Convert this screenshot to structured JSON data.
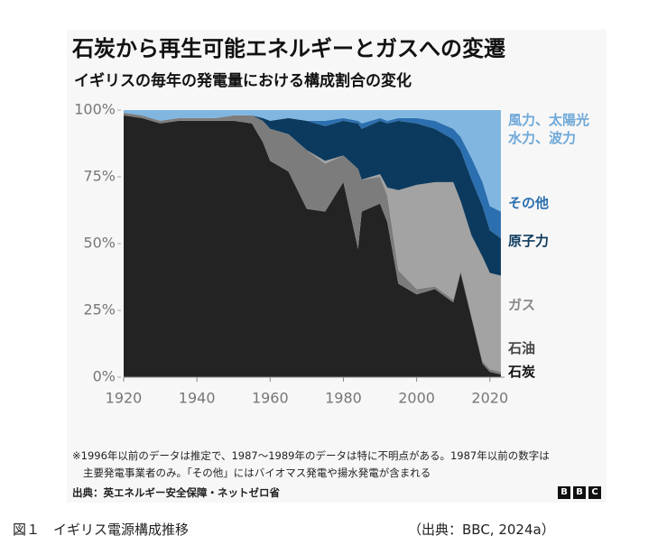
{
  "chart_data": {
    "type": "stacked-area",
    "title": "石炭から再生可能エネルギーとガスへの変遷",
    "subtitle": "イギリスの毎年の発電量における構成割合の変化",
    "x": [
      1920,
      1925,
      1930,
      1935,
      1940,
      1945,
      1950,
      1955,
      1958,
      1960,
      1965,
      1970,
      1975,
      1980,
      1984,
      1985,
      1990,
      1992,
      1995,
      2000,
      2005,
      2010,
      2012,
      2015,
      2018,
      2020,
      2023
    ],
    "series": [
      {
        "name": "石炭",
        "color": "#232323",
        "values": [
          98,
          97,
          95,
          96,
          96,
          96,
          96,
          95,
          88,
          81,
          77,
          63,
          62,
          73,
          48,
          62,
          65,
          58,
          35,
          31,
          33,
          28,
          39,
          22,
          5,
          2,
          1
        ]
      },
      {
        "name": "石油",
        "color": "#7c7c7c",
        "values": [
          1,
          1,
          1,
          1,
          1,
          1,
          2,
          3,
          8,
          12,
          14,
          22,
          18,
          10,
          30,
          12,
          10,
          10,
          5,
          2,
          1,
          1,
          1,
          1,
          1,
          1,
          1
        ]
      },
      {
        "name": "ガス",
        "color": "#a3a3a3",
        "values": [
          0,
          0,
          0,
          0,
          0,
          0,
          0,
          0,
          0,
          0,
          0,
          0,
          1,
          0,
          0,
          0,
          1,
          3,
          30,
          39,
          39,
          44,
          26,
          30,
          39,
          36,
          36
        ]
      },
      {
        "name": "原子力",
        "color": "#0c3a5e",
        "values": [
          0,
          0,
          0,
          0,
          0,
          0,
          0,
          0,
          1,
          3,
          6,
          11,
          13,
          13,
          17,
          19,
          20,
          24,
          26,
          23,
          20,
          16,
          19,
          21,
          19,
          16,
          14
        ]
      },
      {
        "name": "その他",
        "color": "#2c6fb0",
        "values": [
          0,
          0,
          0,
          0,
          0,
          0,
          0,
          0,
          0,
          0,
          0,
          0,
          2,
          1,
          1,
          2,
          1,
          1,
          1,
          2,
          3,
          4,
          5,
          8,
          9,
          9,
          10
        ]
      },
      {
        "name": "風力、太陽光\n水力、波力",
        "color": "#80b6e0",
        "values": [
          1,
          2,
          4,
          3,
          3,
          3,
          2,
          2,
          3,
          4,
          3,
          4,
          4,
          3,
          4,
          5,
          3,
          4,
          3,
          3,
          4,
          7,
          10,
          18,
          27,
          36,
          38
        ]
      }
    ],
    "xlim": [
      1920,
      2024
    ],
    "xticks": [
      1920,
      1940,
      1960,
      1980,
      2000,
      2020
    ],
    "ylim": [
      0,
      100
    ],
    "yticks": [
      {
        "value": 0,
        "label": "0%"
      },
      {
        "value": 25,
        "label": "25%"
      },
      {
        "value": 50,
        "label": "50%"
      },
      {
        "value": 75,
        "label": "75%"
      },
      {
        "value": 100,
        "label": "100%"
      }
    ]
  },
  "document": {
    "note_1": "※1996年以前のデータは推定で、1987～1989年のデータは特に不明点がある。1987年以前の数字は",
    "note_2": "主要発電事業者のみ。「その他」にはバイオマス発電や揚水発電が含まれる",
    "source": "出典：英エネルギー安全保障・ネットゼロ省",
    "logo": [
      "B",
      "B",
      "C"
    ],
    "caption": "図１　イギリス電源構成推移",
    "caption_source": "（出典：BBC, 2024a）"
  }
}
